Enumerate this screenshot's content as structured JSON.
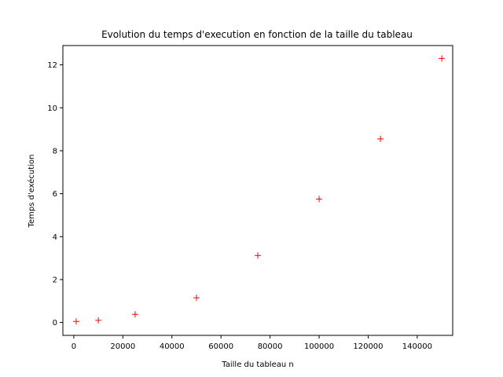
{
  "chart_data": {
    "type": "scatter",
    "title": "Evolution du temps d'execution en fonction de la taille du tableau",
    "xlabel": "Taille du tableau n",
    "ylabel": "Temps d'exécution",
    "xlim": [
      -4450,
      154450
    ],
    "ylim": [
      -0.6,
      12.9
    ],
    "xticks": [
      0,
      20000,
      40000,
      60000,
      80000,
      100000,
      120000,
      140000
    ],
    "xtick_labels": [
      "0",
      "20000",
      "40000",
      "60000",
      "80000",
      "100000",
      "120000",
      "140000"
    ],
    "yticks": [
      0,
      2,
      4,
      6,
      8,
      10,
      12
    ],
    "ytick_labels": [
      "0",
      "2",
      "4",
      "6",
      "8",
      "10",
      "12"
    ],
    "grid": false,
    "marker": "+",
    "color": "#ff0000",
    "series": [
      {
        "x": [
          1000,
          10000,
          25000,
          50000,
          75000,
          100000,
          125000,
          150000
        ],
        "y": [
          0.05,
          0.1,
          0.38,
          1.15,
          3.12,
          5.75,
          8.55,
          12.3
        ]
      }
    ]
  }
}
